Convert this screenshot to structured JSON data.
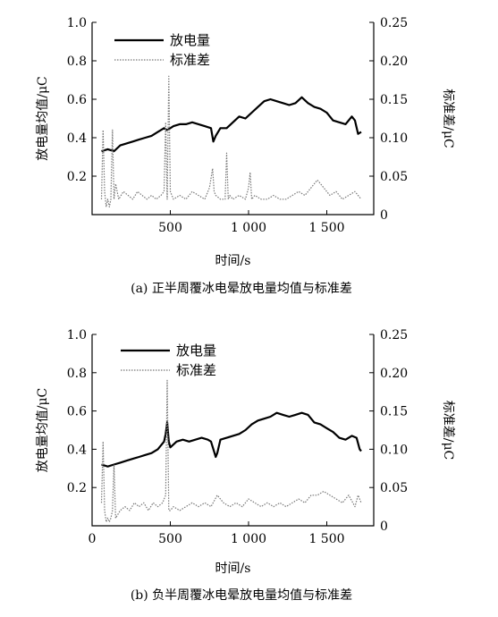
{
  "chart_data": [
    {
      "type": "line",
      "caption": "(a) 正半周覆冰电晕放电量均值与标准差",
      "xlabel": "时间/s",
      "ylabel": "放电量均值/μC",
      "ylabel_right": "标准差/μC",
      "xlim": [
        0,
        1800
      ],
      "ylim": [
        0,
        1.0
      ],
      "ylim_right": [
        0,
        0.25
      ],
      "xticks": [
        500,
        1000,
        1500
      ],
      "xtick_labels": [
        "500",
        "1 000",
        "1 500"
      ],
      "yticks": [
        0.2,
        0.4,
        0.6,
        0.8,
        1.0
      ],
      "ytick_labels": [
        "0.2",
        "0.4",
        "0.6",
        "0.8",
        "1.0"
      ],
      "yticks_right": [
        0,
        0.05,
        0.1,
        0.15,
        0.2,
        0.25
      ],
      "ytick_labels_right": [
        "0",
        "0.05",
        "0.10",
        "0.15",
        "0.20",
        "0.25"
      ],
      "legend_position": "top-left",
      "series": [
        {
          "name": "放电量",
          "axis": "left",
          "style": "solid",
          "x": [
            60,
            100,
            140,
            180,
            220,
            260,
            300,
            340,
            380,
            420,
            460,
            480,
            500,
            520,
            560,
            600,
            640,
            680,
            720,
            760,
            775,
            790,
            820,
            860,
            900,
            940,
            980,
            1020,
            1060,
            1100,
            1140,
            1180,
            1220,
            1260,
            1300,
            1340,
            1380,
            1420,
            1460,
            1500,
            1540,
            1580,
            1620,
            1660,
            1680,
            1700,
            1720
          ],
          "values": [
            0.33,
            0.34,
            0.33,
            0.36,
            0.37,
            0.38,
            0.39,
            0.4,
            0.41,
            0.43,
            0.45,
            0.44,
            0.45,
            0.46,
            0.47,
            0.47,
            0.48,
            0.47,
            0.46,
            0.45,
            0.38,
            0.41,
            0.45,
            0.45,
            0.48,
            0.51,
            0.5,
            0.53,
            0.56,
            0.59,
            0.6,
            0.59,
            0.58,
            0.57,
            0.58,
            0.61,
            0.58,
            0.56,
            0.55,
            0.53,
            0.49,
            0.48,
            0.47,
            0.51,
            0.49,
            0.42,
            0.43
          ]
        },
        {
          "name": "标准差",
          "axis": "right",
          "style": "dotted",
          "x": [
            60,
            70,
            80,
            90,
            100,
            110,
            120,
            130,
            140,
            150,
            170,
            200,
            230,
            260,
            290,
            320,
            350,
            380,
            410,
            440,
            460,
            470,
            480,
            490,
            500,
            520,
            560,
            600,
            640,
            680,
            720,
            750,
            770,
            780,
            790,
            820,
            850,
            860,
            870,
            880,
            900,
            940,
            980,
            1000,
            1010,
            1020,
            1040,
            1080,
            1120,
            1160,
            1200,
            1240,
            1280,
            1320,
            1360,
            1400,
            1440,
            1480,
            1520,
            1560,
            1600,
            1640,
            1680,
            1700,
            1720
          ],
          "values": [
            0.02,
            0.11,
            0.03,
            0.01,
            0.02,
            0.01,
            0.02,
            0.11,
            0.02,
            0.04,
            0.02,
            0.03,
            0.025,
            0.02,
            0.03,
            0.025,
            0.02,
            0.025,
            0.02,
            0.025,
            0.03,
            0.12,
            0.02,
            0.18,
            0.03,
            0.02,
            0.025,
            0.02,
            0.03,
            0.025,
            0.02,
            0.035,
            0.06,
            0.03,
            0.025,
            0.02,
            0.02,
            0.08,
            0.02,
            0.025,
            0.02,
            0.025,
            0.02,
            0.035,
            0.055,
            0.02,
            0.025,
            0.02,
            0.02,
            0.025,
            0.02,
            0.02,
            0.025,
            0.03,
            0.025,
            0.035,
            0.045,
            0.035,
            0.025,
            0.03,
            0.02,
            0.025,
            0.03,
            0.025,
            0.02
          ]
        }
      ]
    },
    {
      "type": "line",
      "caption": "(b) 负半周覆冰电晕放电量均值与标准差",
      "xlabel": "时间/s",
      "ylabel": "放电量均值/μC",
      "ylabel_right": "标准差/μC",
      "xlim": [
        0,
        1800
      ],
      "ylim": [
        0,
        1.0
      ],
      "ylim_right": [
        0,
        0.25
      ],
      "xticks": [
        0,
        500,
        1000,
        1500
      ],
      "xtick_labels": [
        "0",
        "500",
        "1 000",
        "1 500"
      ],
      "yticks": [
        0.2,
        0.4,
        0.6,
        0.8,
        1.0
      ],
      "ytick_labels": [
        "0.2",
        "0.4",
        "0.6",
        "0.8",
        "1.0"
      ],
      "yticks_right": [
        0,
        0.05,
        0.1,
        0.15,
        0.2,
        0.25
      ],
      "ytick_labels_right": [
        "0",
        "0.05",
        "0.10",
        "0.15",
        "0.20",
        "0.25"
      ],
      "legend_position": "top-center",
      "series": [
        {
          "name": "放电量",
          "axis": "left",
          "style": "solid",
          "x": [
            60,
            100,
            140,
            180,
            220,
            260,
            300,
            340,
            380,
            420,
            460,
            470,
            480,
            490,
            500,
            540,
            580,
            620,
            660,
            700,
            740,
            760,
            790,
            800,
            820,
            860,
            900,
            940,
            980,
            1020,
            1060,
            1100,
            1140,
            1180,
            1220,
            1260,
            1300,
            1340,
            1380,
            1420,
            1460,
            1500,
            1540,
            1580,
            1620,
            1660,
            1690,
            1710,
            1720
          ],
          "values": [
            0.32,
            0.31,
            0.32,
            0.33,
            0.34,
            0.35,
            0.36,
            0.37,
            0.38,
            0.4,
            0.44,
            0.48,
            0.54,
            0.44,
            0.41,
            0.44,
            0.45,
            0.44,
            0.45,
            0.46,
            0.45,
            0.44,
            0.36,
            0.38,
            0.45,
            0.46,
            0.47,
            0.48,
            0.5,
            0.53,
            0.55,
            0.56,
            0.57,
            0.59,
            0.58,
            0.57,
            0.58,
            0.59,
            0.58,
            0.54,
            0.53,
            0.51,
            0.49,
            0.46,
            0.45,
            0.47,
            0.46,
            0.4,
            0.39
          ]
        },
        {
          "name": "标准差",
          "axis": "right",
          "style": "dotted",
          "x": [
            60,
            70,
            80,
            90,
            100,
            110,
            120,
            130,
            140,
            150,
            180,
            210,
            240,
            270,
            300,
            330,
            360,
            390,
            420,
            450,
            470,
            480,
            490,
            500,
            520,
            560,
            600,
            640,
            680,
            720,
            760,
            800,
            840,
            880,
            920,
            960,
            1000,
            1040,
            1080,
            1120,
            1160,
            1200,
            1240,
            1280,
            1320,
            1360,
            1400,
            1440,
            1480,
            1520,
            1560,
            1600,
            1640,
            1680,
            1700,
            1720
          ],
          "values": [
            0.03,
            0.11,
            0.02,
            0.005,
            0.01,
            0.005,
            0.01,
            0.02,
            0.08,
            0.01,
            0.02,
            0.025,
            0.02,
            0.03,
            0.025,
            0.03,
            0.02,
            0.03,
            0.025,
            0.03,
            0.04,
            0.19,
            0.02,
            0.02,
            0.025,
            0.02,
            0.025,
            0.03,
            0.025,
            0.03,
            0.025,
            0.04,
            0.03,
            0.025,
            0.03,
            0.025,
            0.035,
            0.03,
            0.025,
            0.03,
            0.025,
            0.03,
            0.025,
            0.03,
            0.035,
            0.03,
            0.04,
            0.04,
            0.045,
            0.04,
            0.035,
            0.03,
            0.04,
            0.025,
            0.04,
            0.03
          ]
        }
      ]
    }
  ]
}
